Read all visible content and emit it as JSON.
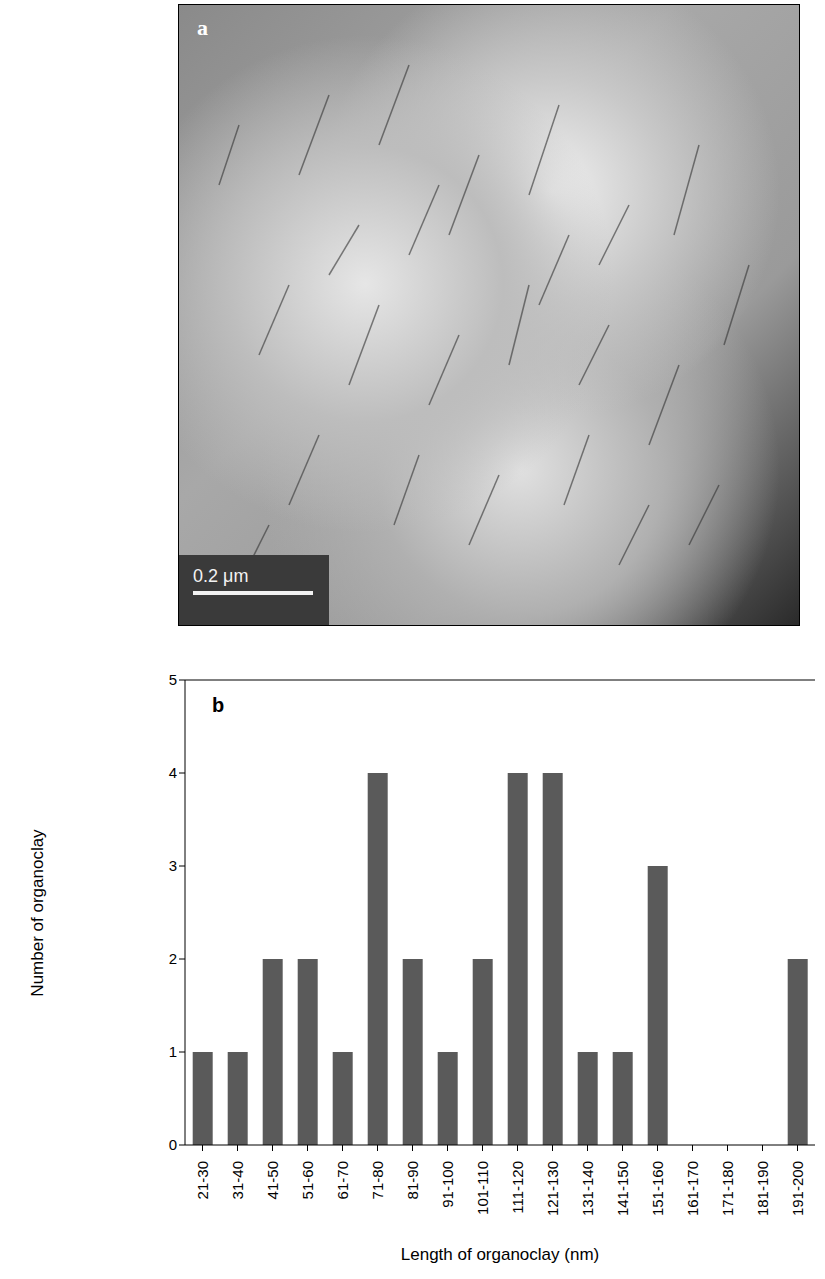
{
  "micrograph": {
    "panel_label": "a",
    "scale_bar": "0.2 μm"
  },
  "chart_data": {
    "type": "bar",
    "panel_label": "b",
    "categories": [
      "21-30",
      "31-40",
      "41-50",
      "51-60",
      "61-70",
      "71-80",
      "81-90",
      "91-100",
      "101-110",
      "111-120",
      "121-130",
      "131-140",
      "141-150",
      "151-160",
      "161-170",
      "171-180",
      "181-190",
      "191-200"
    ],
    "values": [
      1,
      1,
      2,
      2,
      1,
      4,
      2,
      1,
      2,
      4,
      4,
      1,
      1,
      3,
      0,
      0,
      0,
      2
    ],
    "color": "#5a5a5a",
    "x_label": "Length of organoclay (nm)",
    "y_label": "Number of organoclay",
    "ylim": [
      0,
      5
    ],
    "yticks": [
      0,
      1,
      2,
      3,
      4,
      5
    ],
    "grid": false
  }
}
